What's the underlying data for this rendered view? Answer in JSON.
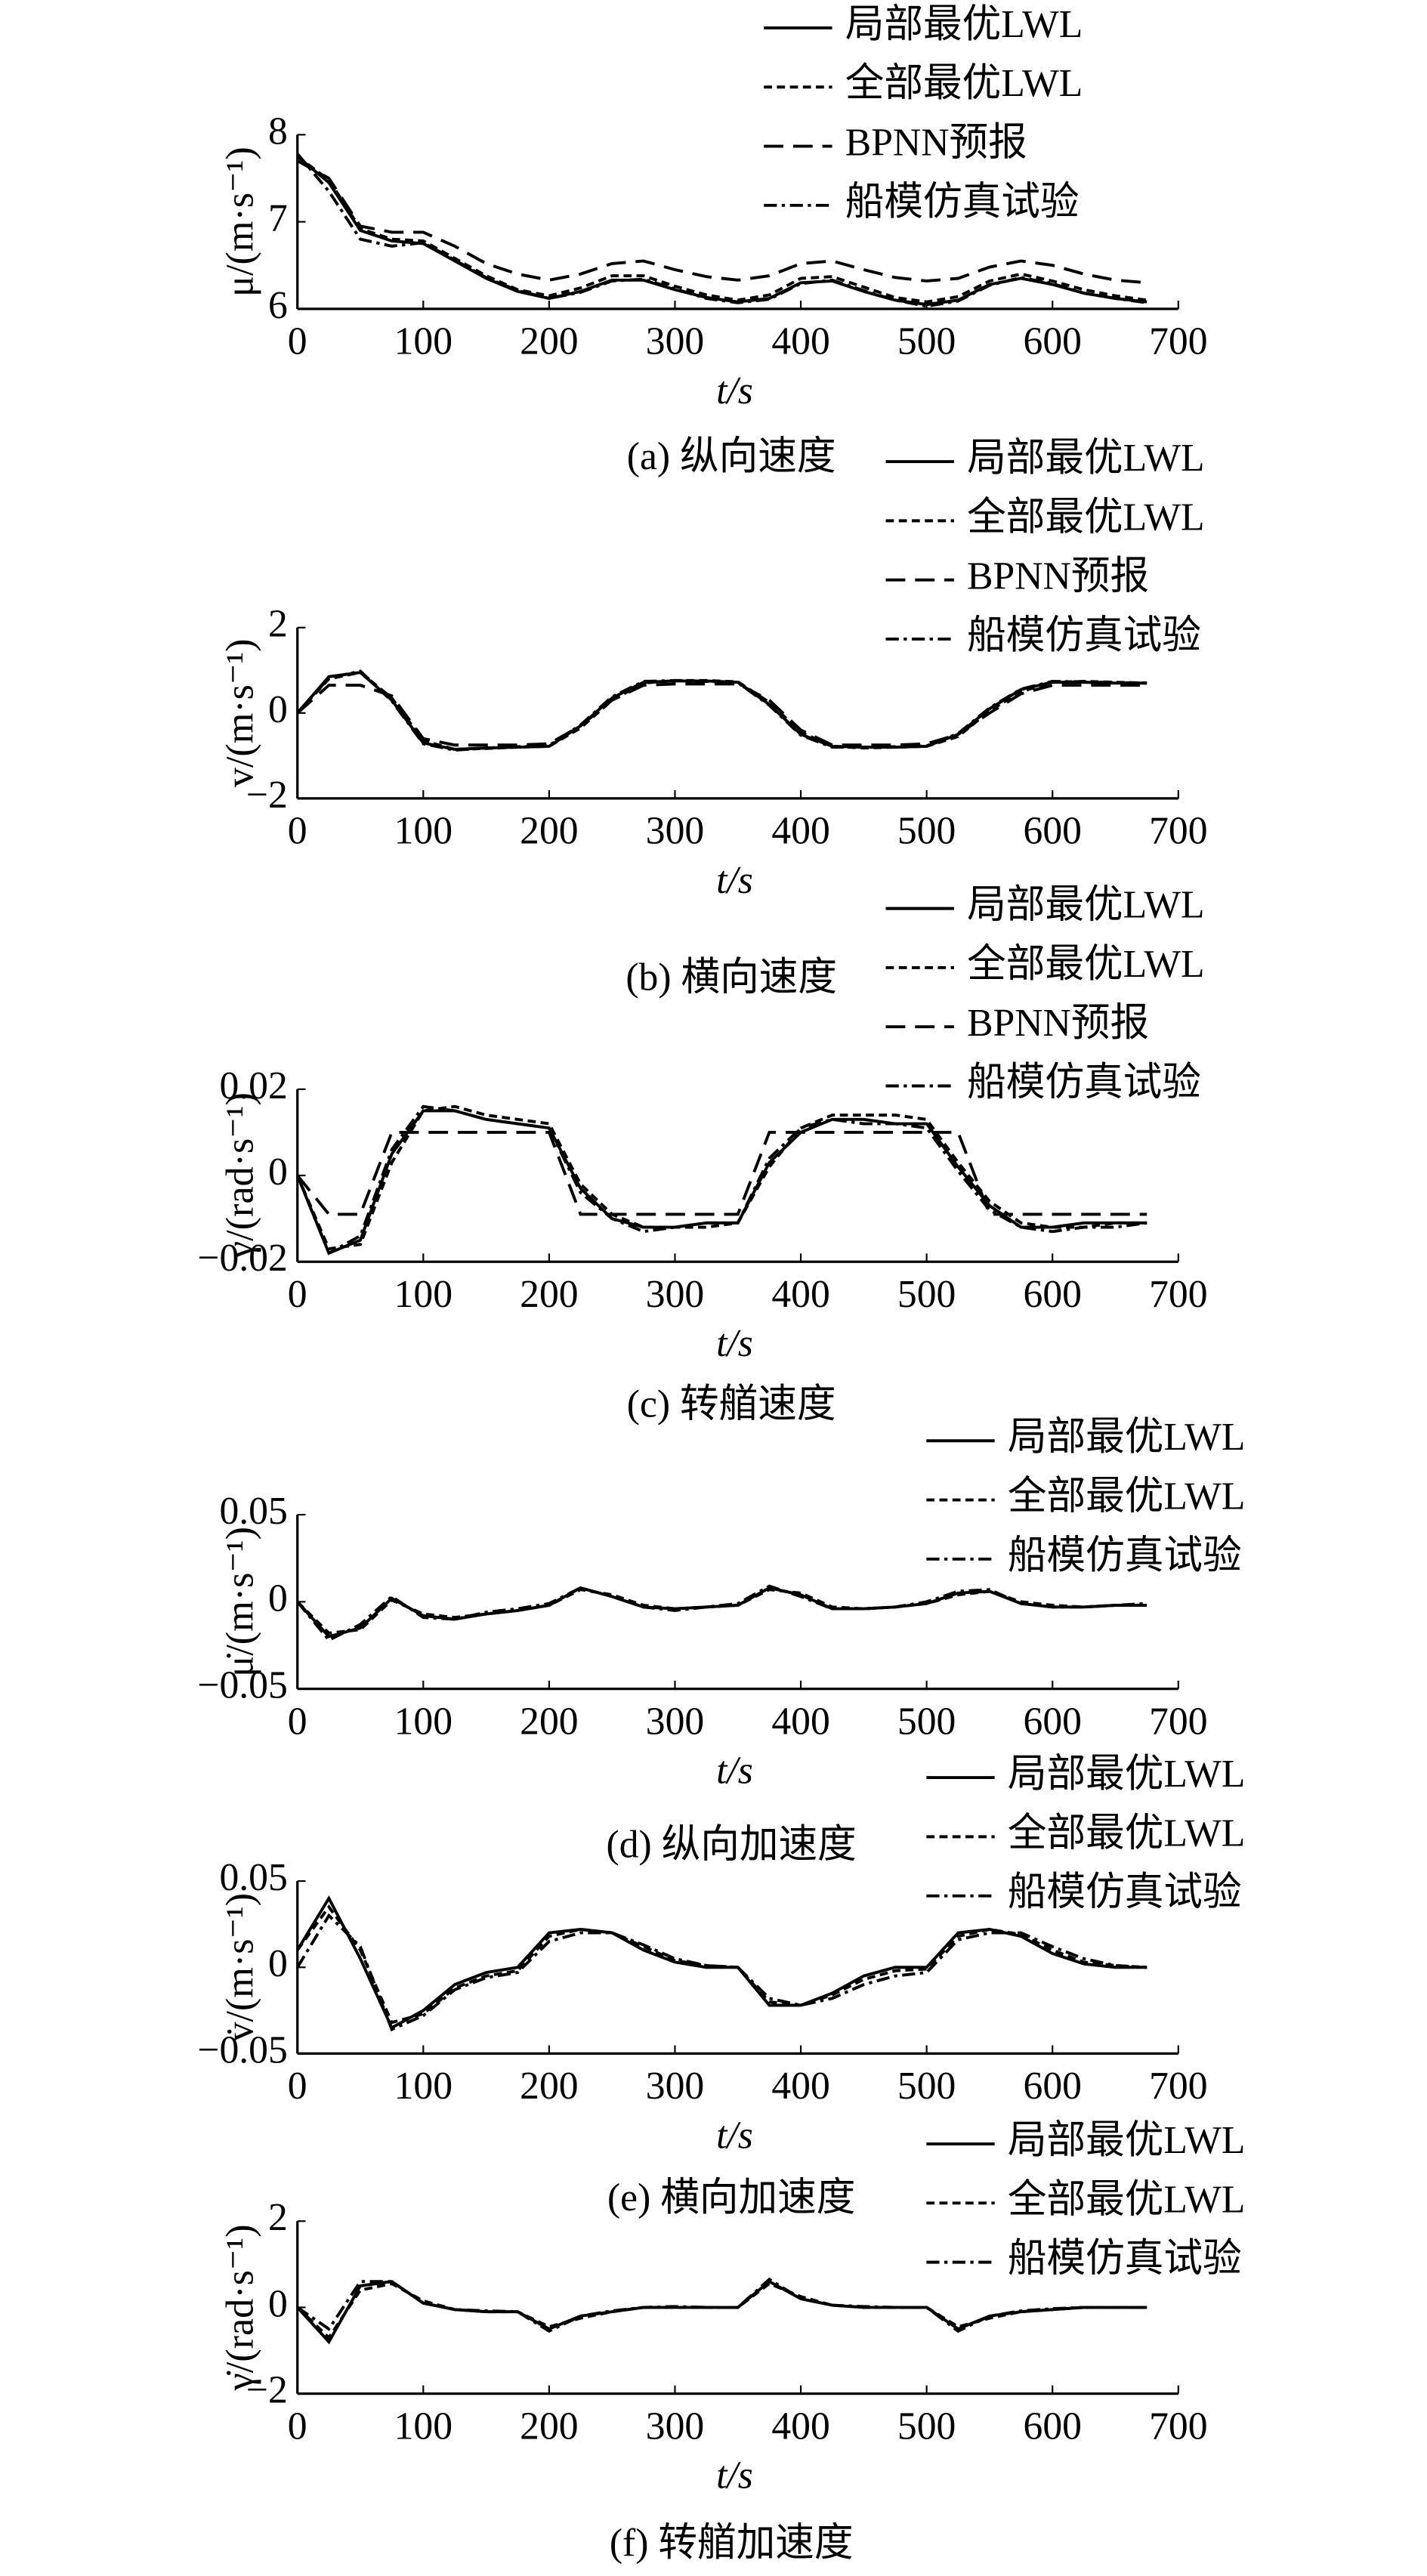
{
  "chart_data": [
    {
      "type": "line",
      "title": "(a) 纵向速度",
      "x_label": "t/s",
      "y_label": "μ/(m·s⁻¹)",
      "x": [
        0,
        25,
        50,
        75,
        100,
        125,
        150,
        175,
        200,
        225,
        250,
        275,
        300,
        325,
        350,
        375,
        400,
        425,
        450,
        475,
        500,
        525,
        550,
        575,
        600,
        625,
        650,
        675
      ],
      "xlim": [
        0,
        700
      ],
      "xticks": [
        0,
        100,
        200,
        300,
        400,
        500,
        600,
        700
      ],
      "ylim": [
        6,
        8
      ],
      "yticks": [
        6,
        7,
        8
      ],
      "series": [
        {
          "name": "局部最优LWL",
          "color": "#000000",
          "linestyle": "solid",
          "values": [
            7.75,
            7.45,
            6.9,
            6.78,
            6.75,
            6.55,
            6.35,
            6.2,
            6.12,
            6.2,
            6.33,
            6.33,
            6.22,
            6.13,
            6.08,
            6.12,
            6.3,
            6.32,
            6.2,
            6.1,
            6.05,
            6.1,
            6.28,
            6.35,
            6.28,
            6.18,
            6.12,
            6.08
          ]
        },
        {
          "name": "全部最优LWL",
          "color": "#000000",
          "linestyle": "dashed",
          "values": [
            7.75,
            7.48,
            6.92,
            6.8,
            6.78,
            6.58,
            6.38,
            6.22,
            6.15,
            6.24,
            6.38,
            6.38,
            6.26,
            6.16,
            6.1,
            6.16,
            6.35,
            6.37,
            6.25,
            6.13,
            6.08,
            6.14,
            6.32,
            6.4,
            6.32,
            6.22,
            6.15,
            6.1
          ]
        },
        {
          "name": "BPNN预报",
          "color": "#000000",
          "linestyle": "long-dashed",
          "values": [
            7.7,
            7.5,
            6.95,
            6.88,
            6.88,
            6.72,
            6.52,
            6.4,
            6.33,
            6.4,
            6.52,
            6.55,
            6.45,
            6.37,
            6.33,
            6.38,
            6.52,
            6.55,
            6.45,
            6.36,
            6.32,
            6.35,
            6.48,
            6.55,
            6.5,
            6.4,
            6.33,
            6.3
          ]
        },
        {
          "name": "船模仿真试验",
          "color": "#000000",
          "linestyle": "dash-dot",
          "values": [
            7.78,
            7.35,
            6.8,
            6.72,
            6.76,
            6.56,
            6.36,
            6.21,
            6.12,
            6.19,
            6.32,
            6.34,
            6.23,
            6.12,
            6.07,
            6.11,
            6.29,
            6.33,
            6.21,
            6.1,
            6.03,
            6.09,
            6.27,
            6.36,
            6.29,
            6.18,
            6.12,
            6.07
          ]
        }
      ]
    },
    {
      "type": "line",
      "title": "(b) 横向速度",
      "x_label": "t/s",
      "y_label": "v/(m·s⁻¹)",
      "x": [
        0,
        25,
        50,
        75,
        100,
        125,
        150,
        175,
        200,
        225,
        250,
        275,
        300,
        325,
        350,
        375,
        400,
        425,
        450,
        475,
        500,
        525,
        550,
        575,
        600,
        625,
        650,
        675
      ],
      "xlim": [
        0,
        700
      ],
      "xticks": [
        0,
        100,
        200,
        300,
        400,
        500,
        600,
        700
      ],
      "ylim": [
        -2,
        2
      ],
      "yticks": [
        {
          "value": -2,
          "label": "−2"
        },
        0,
        2
      ],
      "series": [
        {
          "name": "局部最优LWL",
          "color": "#000000",
          "linestyle": "solid",
          "values": [
            0,
            0.85,
            0.95,
            0.3,
            -0.7,
            -0.85,
            -0.82,
            -0.8,
            -0.78,
            -0.3,
            0.35,
            0.72,
            0.75,
            0.75,
            0.72,
            0.2,
            -0.5,
            -0.78,
            -0.8,
            -0.8,
            -0.78,
            -0.5,
            0.1,
            0.55,
            0.72,
            0.72,
            0.7,
            0.7
          ]
        },
        {
          "name": "全部最优LWL",
          "color": "#000000",
          "linestyle": "dashed",
          "values": [
            0,
            0.8,
            0.95,
            0.35,
            -0.65,
            -0.85,
            -0.83,
            -0.8,
            -0.78,
            -0.35,
            0.3,
            0.7,
            0.76,
            0.76,
            0.73,
            0.25,
            -0.45,
            -0.78,
            -0.82,
            -0.8,
            -0.78,
            -0.55,
            0.05,
            0.5,
            0.72,
            0.74,
            0.72,
            0.7
          ]
        },
        {
          "name": "BPNN预报",
          "color": "#000000",
          "linestyle": "long-dashed",
          "values": [
            0,
            0.65,
            0.65,
            0.4,
            -0.6,
            -0.75,
            -0.75,
            -0.75,
            -0.72,
            -0.3,
            0.3,
            0.65,
            0.68,
            0.68,
            0.68,
            0.3,
            -0.4,
            -0.75,
            -0.75,
            -0.75,
            -0.72,
            -0.5,
            0,
            0.45,
            0.65,
            0.65,
            0.65,
            0.65
          ]
        },
        {
          "name": "船模仿真试验",
          "color": "#000000",
          "linestyle": "dash-dot",
          "values": [
            0,
            0.82,
            0.98,
            0.28,
            -0.72,
            -0.87,
            -0.82,
            -0.79,
            -0.76,
            -0.28,
            0.38,
            0.74,
            0.76,
            0.74,
            0.71,
            0.18,
            -0.52,
            -0.8,
            -0.8,
            -0.79,
            -0.77,
            -0.48,
            0.12,
            0.56,
            0.74,
            0.73,
            0.71,
            0.7
          ]
        }
      ]
    },
    {
      "type": "line",
      "title": "(c) 转艏速度",
      "x_label": "t/s",
      "y_label": "γ/(rad·s⁻¹)",
      "x": [
        0,
        25,
        50,
        75,
        100,
        125,
        150,
        175,
        200,
        225,
        250,
        275,
        300,
        325,
        350,
        375,
        400,
        425,
        450,
        475,
        500,
        525,
        550,
        575,
        600,
        625,
        650,
        675
      ],
      "xlim": [
        0,
        700
      ],
      "xticks": [
        0,
        100,
        200,
        300,
        400,
        500,
        600,
        700
      ],
      "ylim": [
        -0.02,
        0.02
      ],
      "yticks": [
        {
          "value": -0.02,
          "label": "−0.02"
        },
        0,
        0.02
      ],
      "series": [
        {
          "name": "局部最优LWL",
          "color": "#000000",
          "linestyle": "solid",
          "values": [
            0,
            -0.018,
            -0.015,
            0.005,
            0.015,
            0.015,
            0.013,
            0.012,
            0.011,
            -0.003,
            -0.01,
            -0.012,
            -0.012,
            -0.011,
            -0.011,
            0.003,
            0.01,
            0.013,
            0.013,
            0.012,
            0.012,
            0.002,
            -0.007,
            -0.012,
            -0.012,
            -0.011,
            -0.011,
            -0.011
          ]
        },
        {
          "name": "全部最优LWL",
          "color": "#000000",
          "linestyle": "dashed",
          "values": [
            0,
            -0.017,
            -0.016,
            0.003,
            0.015,
            0.016,
            0.014,
            0.013,
            0.012,
            -0.002,
            -0.009,
            -0.012,
            -0.012,
            -0.012,
            -0.011,
            0.002,
            0.011,
            0.014,
            0.014,
            0.014,
            0.013,
            0.003,
            -0.006,
            -0.011,
            -0.012,
            -0.012,
            -0.011,
            -0.011
          ]
        },
        {
          "name": "BPNN预报",
          "color": "#000000",
          "linestyle": "long-dashed",
          "values": [
            0,
            -0.009,
            -0.009,
            0.01,
            0.01,
            0.01,
            0.01,
            0.01,
            0.01,
            -0.009,
            -0.009,
            -0.009,
            -0.009,
            -0.009,
            -0.009,
            0.01,
            0.01,
            0.01,
            0.01,
            0.01,
            0.01,
            0.01,
            -0.009,
            -0.009,
            -0.009,
            -0.009,
            -0.009,
            -0.009
          ]
        },
        {
          "name": "船模仿真试验",
          "color": "#000000",
          "linestyle": "dash-dot",
          "values": [
            0,
            -0.018,
            -0.014,
            0.006,
            0.016,
            0.015,
            0.013,
            0.012,
            0.011,
            -0.004,
            -0.01,
            -0.013,
            -0.012,
            -0.011,
            -0.011,
            0.004,
            0.011,
            0.013,
            0.012,
            0.012,
            0.011,
            0.001,
            -0.008,
            -0.012,
            -0.013,
            -0.012,
            -0.012,
            -0.011
          ]
        }
      ]
    },
    {
      "type": "line",
      "title": "(d) 纵向加速度",
      "x_label": "t/s",
      "y_label": "μ̇/(m·s⁻¹)",
      "x": [
        0,
        25,
        50,
        75,
        100,
        125,
        150,
        175,
        200,
        225,
        250,
        275,
        300,
        325,
        350,
        375,
        400,
        425,
        450,
        475,
        500,
        525,
        550,
        575,
        600,
        625,
        650,
        675
      ],
      "xlim": [
        0,
        700
      ],
      "xticks": [
        0,
        100,
        200,
        300,
        400,
        500,
        600,
        700
      ],
      "ylim": [
        -0.05,
        0.05
      ],
      "yticks": [
        {
          "value": -0.05,
          "label": "−0.05"
        },
        0,
        0.05
      ],
      "series": [
        {
          "name": "局部最优LWL",
          "color": "#000000",
          "linestyle": "solid",
          "values": [
            0,
            -0.02,
            -0.015,
            0.002,
            -0.008,
            -0.01,
            -0.007,
            -0.005,
            -0.002,
            0.008,
            0.003,
            -0.003,
            -0.004,
            -0.003,
            -0.002,
            0.008,
            0.004,
            -0.004,
            -0.004,
            -0.003,
            -0.001,
            0.005,
            0.006,
            -0.001,
            -0.003,
            -0.003,
            -0.002,
            -0.002
          ]
        },
        {
          "name": "全部最优LWL",
          "color": "#000000",
          "linestyle": "dashed",
          "values": [
            0,
            -0.018,
            -0.016,
            0.001,
            -0.007,
            -0.009,
            -0.007,
            -0.005,
            -0.002,
            0.007,
            0.004,
            -0.002,
            -0.004,
            -0.003,
            -0.002,
            0.007,
            0.005,
            -0.003,
            -0.004,
            -0.003,
            -0.001,
            0.004,
            0.006,
            0,
            -0.002,
            -0.003,
            -0.002,
            -0.002
          ]
        },
        {
          "name": "船模仿真试验",
          "color": "#000000",
          "linestyle": "dash-dot",
          "values": [
            0,
            -0.022,
            -0.013,
            0.003,
            -0.009,
            -0.01,
            -0.006,
            -0.004,
            -0.001,
            0.008,
            0.003,
            -0.003,
            -0.005,
            -0.003,
            -0.001,
            0.009,
            0.003,
            -0.004,
            -0.004,
            -0.003,
            0,
            0.006,
            0.007,
            -0.001,
            -0.003,
            -0.003,
            -0.002,
            -0.001
          ]
        }
      ]
    },
    {
      "type": "line",
      "title": "(e) 横向加速度",
      "x_label": "t/s",
      "y_label": "v̇/(m·s⁻¹)",
      "x": [
        0,
        25,
        50,
        75,
        100,
        125,
        150,
        175,
        200,
        225,
        250,
        275,
        300,
        325,
        350,
        375,
        400,
        425,
        450,
        475,
        500,
        525,
        550,
        575,
        600,
        625,
        650,
        675
      ],
      "xlim": [
        0,
        700
      ],
      "xticks": [
        0,
        100,
        200,
        300,
        400,
        500,
        600,
        700
      ],
      "ylim": [
        -0.05,
        0.05
      ],
      "yticks": [
        {
          "value": -0.05,
          "label": "−0.05"
        },
        0,
        0.05
      ],
      "series": [
        {
          "name": "局部最优LWL",
          "color": "#000000",
          "linestyle": "solid",
          "values": [
            0.01,
            0.04,
            0.005,
            -0.035,
            -0.025,
            -0.01,
            -0.003,
            0,
            0.02,
            0.022,
            0.02,
            0.01,
            0.003,
            0,
            0,
            -0.022,
            -0.022,
            -0.015,
            -0.005,
            0,
            0,
            0.02,
            0.022,
            0.018,
            0.008,
            0.002,
            0,
            0
          ]
        },
        {
          "name": "全部最优LWL",
          "color": "#000000",
          "linestyle": "dashed",
          "values": [
            0.01,
            0.035,
            0.01,
            -0.032,
            -0.027,
            -0.012,
            -0.005,
            -0.002,
            0.018,
            0.022,
            0.02,
            0.012,
            0.004,
            0.001,
            0,
            -0.02,
            -0.022,
            -0.016,
            -0.007,
            -0.002,
            -0.001,
            0.018,
            0.022,
            0.019,
            0.01,
            0.003,
            0.001,
            0
          ]
        },
        {
          "name": "船模仿真试验",
          "color": "#000000",
          "linestyle": "dash-dot",
          "values": [
            0,
            0.03,
            0.012,
            -0.036,
            -0.028,
            -0.013,
            -0.006,
            -0.003,
            0.015,
            0.02,
            0.02,
            0.013,
            0.005,
            0.001,
            0,
            -0.018,
            -0.022,
            -0.018,
            -0.01,
            -0.005,
            -0.003,
            0.016,
            0.02,
            0.02,
            0.012,
            0.005,
            0.001,
            0
          ]
        }
      ]
    },
    {
      "type": "line",
      "title": "(f) 转艏加速度",
      "x_label": "t/s",
      "y_label": "γ̇/(rad·s⁻¹)",
      "x": [
        0,
        25,
        50,
        75,
        100,
        125,
        150,
        175,
        200,
        225,
        250,
        275,
        300,
        325,
        350,
        375,
        400,
        425,
        450,
        475,
        500,
        525,
        550,
        575,
        600,
        625,
        650,
        675
      ],
      "xlim": [
        0,
        700
      ],
      "xticks": [
        0,
        100,
        200,
        300,
        400,
        500,
        600,
        700
      ],
      "ylim": [
        -2,
        2
      ],
      "yticks": [
        {
          "value": -2,
          "label": "−2"
        },
        0,
        2
      ],
      "series": [
        {
          "name": "局部最优LWL",
          "color": "#000000",
          "linestyle": "solid",
          "values": [
            0,
            -0.8,
            0.5,
            0.6,
            0.1,
            -0.05,
            -0.1,
            -0.1,
            -0.5,
            -0.2,
            -0.1,
            0,
            0,
            0,
            0,
            0.6,
            0.2,
            0.05,
            0,
            0,
            0,
            -0.5,
            -0.2,
            -0.1,
            -0.05,
            0,
            0,
            0
          ]
        },
        {
          "name": "全部最优LWL",
          "color": "#000000",
          "linestyle": "dashed",
          "values": [
            0,
            -0.7,
            0.4,
            0.55,
            0.15,
            -0.05,
            -0.1,
            -0.1,
            -0.45,
            -0.25,
            -0.1,
            0,
            0,
            0,
            0,
            0.55,
            0.25,
            0.05,
            0,
            0,
            0,
            -0.45,
            -0.25,
            -0.1,
            -0.05,
            0,
            0,
            0
          ]
        },
        {
          "name": "船模仿真试验",
          "color": "#000000",
          "linestyle": "dash-dot",
          "values": [
            0,
            -0.5,
            0.6,
            0.6,
            0.1,
            -0.05,
            -0.08,
            -0.1,
            -0.55,
            -0.2,
            -0.08,
            0,
            0.02,
            0,
            0,
            0.65,
            0.2,
            0.05,
            0.02,
            0,
            0,
            -0.55,
            -0.2,
            -0.08,
            -0.03,
            0,
            0,
            0
          ]
        }
      ]
    }
  ]
}
